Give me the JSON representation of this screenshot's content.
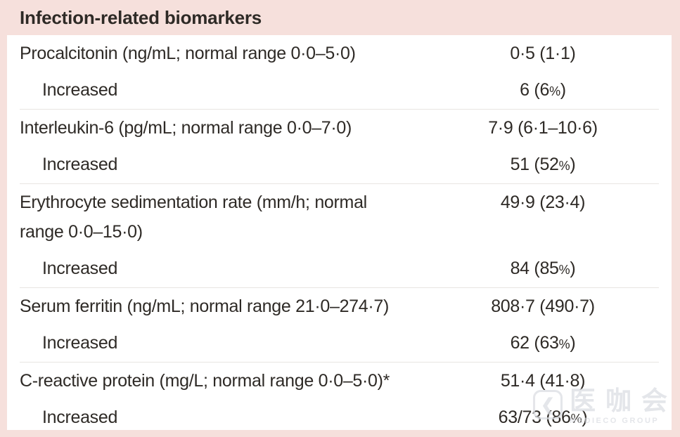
{
  "colors": {
    "background_pink": "#f6e0dc",
    "panel_white": "#ffffff",
    "text": "#2e2a26",
    "divider": "#e8e5e2",
    "watermark_gray": "#dcdee3"
  },
  "table": {
    "header": "Infection-related biomarkers",
    "rows": [
      {
        "type": "main",
        "label": "Procalcitonin (ng/mL; normal range 0·0–5·0)",
        "value": "0·5 (1·1)"
      },
      {
        "type": "sub",
        "label": "Increased",
        "value": "6 (6%)"
      },
      {
        "type": "main",
        "label": "Interleukin-6 (pg/mL; normal range 0·0–7·0)",
        "value": "7·9 (6·1–10·6)"
      },
      {
        "type": "sub",
        "label": "Increased",
        "value": "51 (52%)"
      },
      {
        "type": "main",
        "label": "Erythrocyte sedimentation rate (mm/h; normal\nrange 0·0–15·0)",
        "value": "49·9 (23·4)"
      },
      {
        "type": "sub",
        "label": "Increased",
        "value": "84 (85%)"
      },
      {
        "type": "main",
        "label": "Serum ferritin (ng/mL; normal range 21·0–274·7)",
        "value": "808·7 (490·7)"
      },
      {
        "type": "sub",
        "label": "Increased",
        "value": "62 (63%)"
      },
      {
        "type": "main",
        "label": "C-reactive protein (mg/L; normal range 0·0–5·0)*",
        "value": "51·4 (41·8)"
      },
      {
        "type": "sub",
        "label": "Increased",
        "value": "63/73 (86%)"
      }
    ]
  },
  "watermark": {
    "icon": "chat-bubble-logo-icon",
    "icon_glyph": "❮",
    "name": "医咖会",
    "subtitle": "MEDIECO GROUP"
  }
}
